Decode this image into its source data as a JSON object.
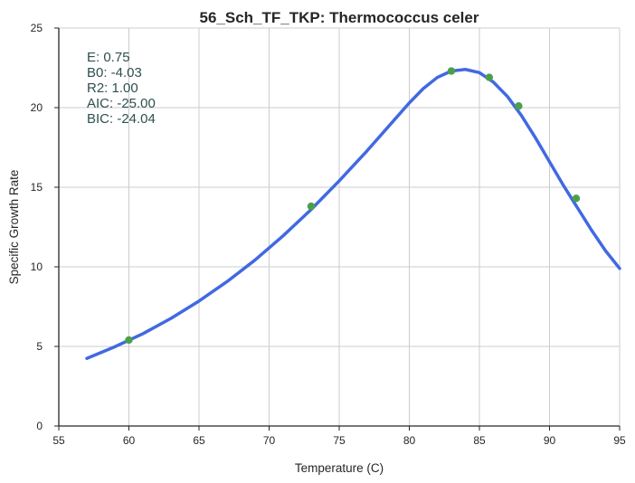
{
  "chart_data": {
    "type": "scatter",
    "title": "56_Sch_TF_TKP: Thermococcus celer",
    "xlabel": "Temperature (C)",
    "ylabel": "Specific Growth Rate",
    "xlim": [
      55,
      95
    ],
    "ylim": [
      0,
      25
    ],
    "xticks": [
      "55",
      "60",
      "65",
      "70",
      "75",
      "80",
      "85",
      "90",
      "95"
    ],
    "yticks": [
      "0",
      "5",
      "10",
      "15",
      "20",
      "25"
    ],
    "grid": true,
    "colors": {
      "points": "#4aa04a",
      "curve": "#4169e1",
      "grid": "#cccccc",
      "axis": "#262626",
      "stats": "#2f4f4f"
    },
    "points": {
      "x": [
        60,
        73,
        83,
        85.7,
        87.8,
        91.9
      ],
      "y": [
        5.4,
        13.8,
        22.3,
        21.9,
        20.1,
        14.3
      ]
    },
    "curve": {
      "x": [
        57,
        59,
        61,
        63,
        65,
        67,
        69,
        71,
        73,
        75,
        77,
        79,
        80,
        81,
        82,
        83,
        84,
        85,
        86,
        87,
        88,
        89,
        90,
        91,
        92,
        93,
        94,
        95
      ],
      "y": [
        4.25,
        4.98,
        5.8,
        6.76,
        7.85,
        9.07,
        10.43,
        11.95,
        13.6,
        15.4,
        17.3,
        19.3,
        20.3,
        21.2,
        21.9,
        22.3,
        22.4,
        22.2,
        21.6,
        20.7,
        19.5,
        18.1,
        16.6,
        15.1,
        13.7,
        12.3,
        11.0,
        9.9
      ]
    },
    "stats": [
      "E:  0.75",
      "B0:  -4.03",
      "R2:  1.00",
      "AIC: -25.00",
      "BIC: -24.04"
    ]
  }
}
